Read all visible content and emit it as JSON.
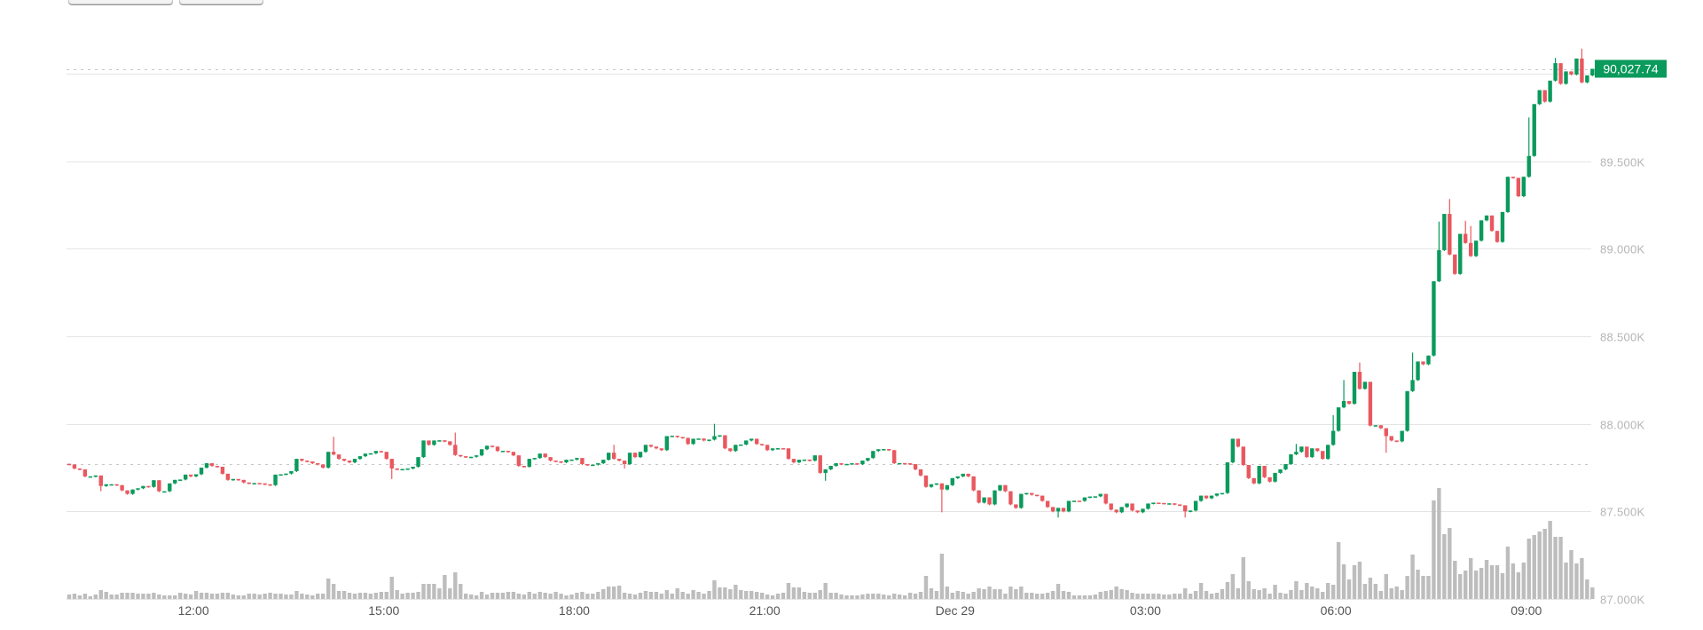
{
  "toolbar": {
    "buttons": [
      {
        "id": "btn-1"
      },
      {
        "id": "btn-2"
      }
    ]
  },
  "chart_data": {
    "type": "candlestick",
    "start": "Dec 28 10:00",
    "interval_minutes": 5,
    "ylim": [
      87000,
      90000
    ],
    "grid": true,
    "colors": {
      "up": "#0a9a5c",
      "down": "#e9585f",
      "volume": "#bdbdbd",
      "grid": "#e4e4e4",
      "price_tag": "#0a9a5c"
    },
    "y_ticks": [
      {
        "value": 87000,
        "label": "87.000K"
      },
      {
        "value": 87500,
        "label": "87.500K"
      },
      {
        "value": 88000,
        "label": "88.000K"
      },
      {
        "value": 88500,
        "label": "88.500K"
      },
      {
        "value": 89000,
        "label": "89.000K"
      },
      {
        "value": 89500,
        "label": "89.500K"
      },
      {
        "value": 90000,
        "label": ""
      }
    ],
    "x_ticks": [
      {
        "time": "Dec 28 12:00",
        "label": "12:00"
      },
      {
        "time": "Dec 28 15:00",
        "label": "15:00"
      },
      {
        "time": "Dec 28 18:00",
        "label": "18:00"
      },
      {
        "time": "Dec 28 21:00",
        "label": "21:00"
      },
      {
        "time": "Dec 29 00:00",
        "label": "Dec 29"
      },
      {
        "time": "Dec 29 03:00",
        "label": "03:00"
      },
      {
        "time": "Dec 29 06:00",
        "label": "06:00"
      },
      {
        "time": "Dec 29 09:00",
        "label": "09:00"
      }
    ],
    "last_price": 90027.74,
    "last_price_label": "90,027.74",
    "reference_price": 87768,
    "first_open": 87772,
    "closes": [
      87768,
      87745,
      87740,
      87700,
      87700,
      87705,
      87645,
      87655,
      87655,
      87650,
      87620,
      87600,
      87625,
      87632,
      87645,
      87640,
      87678,
      87615,
      87615,
      87660,
      87680,
      87682,
      87710,
      87700,
      87712,
      87750,
      87775,
      87760,
      87755,
      87715,
      87680,
      87685,
      87680,
      87665,
      87660,
      87662,
      87660,
      87655,
      87650,
      87710,
      87712,
      87716,
      87730,
      87800,
      87790,
      87785,
      87775,
      87768,
      87750,
      87840,
      87825,
      87800,
      87790,
      87780,
      87800,
      87815,
      87830,
      87832,
      87845,
      87840,
      87800,
      87745,
      87740,
      87742,
      87745,
      87755,
      87810,
      87905,
      87880,
      87905,
      87906,
      87900,
      87880,
      87822,
      87815,
      87810,
      87812,
      87820,
      87855,
      87875,
      87870,
      87845,
      87846,
      87840,
      87820,
      87760,
      87755,
      87800,
      87805,
      87830,
      87810,
      87790,
      87786,
      87780,
      87795,
      87796,
      87805,
      87770,
      87765,
      87767,
      87775,
      87795,
      87835,
      87800,
      87790,
      87770,
      87835,
      87810,
      87840,
      87880,
      87870,
      87860,
      87850,
      87930,
      87932,
      87925,
      87920,
      87885,
      87915,
      87916,
      87905,
      87910,
      87930,
      87935,
      87860,
      87845,
      87880,
      87882,
      87905,
      87915,
      87885,
      87880,
      87850,
      87860,
      87861,
      87860,
      87800,
      87780,
      87795,
      87796,
      87790,
      87820,
      87720,
      87740,
      87760,
      87775,
      87770,
      87771,
      87775,
      87770,
      87790,
      87805,
      87845,
      87855,
      87856,
      87850,
      87775,
      87776,
      87775,
      87770,
      87740,
      87705,
      87640,
      87655,
      87660,
      87625,
      87650,
      87690,
      87700,
      87715,
      87700,
      87620,
      87550,
      87580,
      87540,
      87620,
      87650,
      87615,
      87540,
      87520,
      87600,
      87605,
      87595,
      87590,
      87560,
      87525,
      87500,
      87520,
      87500,
      87560,
      87561,
      87560,
      87580,
      87585,
      87586,
      87600,
      87545,
      87510,
      87495,
      87525,
      87545,
      87505,
      87495,
      87515,
      87545,
      87550,
      87548,
      87545,
      87546,
      87540,
      87535,
      87500,
      87505,
      87560,
      87590,
      87575,
      87590,
      87602,
      87605,
      87780,
      87915,
      87870,
      87765,
      87690,
      87660,
      87760,
      87695,
      87670,
      87720,
      87740,
      87770,
      87826,
      87840,
      87870,
      87810,
      87860,
      87845,
      87800,
      87880,
      87960,
      88094,
      88130,
      88115,
      88297,
      88200,
      88240,
      87990,
      87992,
      87975,
      87930,
      87905,
      87900,
      87960,
      88187,
      88250,
      88356,
      88340,
      88390,
      88814,
      88992,
      89199,
      88967,
      88856,
      89085,
      89033,
      88958,
      89046,
      89162,
      89190,
      89102,
      89039,
      89210,
      89411,
      89405,
      89300,
      89411,
      89530,
      89826,
      89906,
      89840,
      89960,
      90060,
      89942,
      90013,
      89995,
      90086,
      89950,
      89990,
      90027.74
    ],
    "wicks": [
      [
        6,
        null,
        87620
      ],
      [
        50,
        87926,
        null
      ],
      [
        61,
        null,
        87690
      ],
      [
        73,
        87950,
        null
      ],
      [
        103,
        87880,
        null
      ],
      [
        105,
        null,
        87750
      ],
      [
        122,
        88000,
        null
      ],
      [
        143,
        null,
        87680
      ],
      [
        165,
        null,
        87500
      ],
      [
        187,
        null,
        87470
      ],
      [
        211,
        null,
        87470
      ],
      [
        232,
        87885,
        null
      ],
      [
        239,
        88050,
        null
      ],
      [
        241,
        88250,
        null
      ],
      [
        244,
        88350,
        null
      ],
      [
        249,
        null,
        87840
      ],
      [
        254,
        88407,
        null
      ],
      [
        259,
        89155,
        null
      ],
      [
        261,
        89284,
        null
      ],
      [
        264,
        89160,
        null
      ],
      [
        265,
        89130,
        null
      ],
      [
        276,
        89750,
        null
      ],
      [
        281,
        90090,
        null
      ],
      [
        286,
        90143,
        null
      ]
    ],
    "volumes": [
      5,
      6,
      4,
      6,
      3,
      5,
      10,
      8,
      5,
      5,
      7,
      7,
      7,
      6,
      6,
      6,
      7,
      5,
      4,
      4,
      4,
      7,
      6,
      5,
      9,
      7,
      7,
      6,
      6,
      7,
      7,
      5,
      4,
      4,
      6,
      6,
      5,
      6,
      7,
      6,
      6,
      5,
      5,
      9,
      6,
      5,
      4,
      6,
      6,
      23,
      17,
      9,
      9,
      7,
      6,
      7,
      7,
      6,
      7,
      8,
      8,
      25,
      10,
      6,
      7,
      7,
      8,
      17,
      17,
      17,
      12,
      27,
      12,
      30,
      17,
      6,
      5,
      4,
      8,
      5,
      7,
      7,
      7,
      8,
      8,
      6,
      5,
      8,
      6,
      8,
      7,
      6,
      8,
      6,
      4,
      5,
      7,
      8,
      6,
      6,
      8,
      11,
      14,
      14,
      15,
      7,
      6,
      5,
      7,
      9,
      8,
      8,
      6,
      10,
      6,
      12,
      8,
      6,
      10,
      8,
      6,
      9,
      21,
      13,
      13,
      11,
      16,
      10,
      9,
      9,
      8,
      7,
      5,
      4,
      6,
      7,
      18,
      13,
      13,
      8,
      7,
      7,
      10,
      18,
      7,
      7,
      5,
      4,
      4,
      4,
      5,
      6,
      6,
      6,
      5,
      4,
      6,
      5,
      4,
      7,
      6,
      8,
      26,
      12,
      9,
      51,
      14,
      7,
      9,
      8,
      6,
      8,
      12,
      11,
      14,
      11,
      11,
      6,
      14,
      11,
      14,
      7,
      7,
      6,
      6,
      7,
      9,
      17,
      9,
      8,
      4,
      4,
      4,
      4,
      5,
      8,
      9,
      10,
      14,
      11,
      10,
      7,
      6,
      6,
      6,
      6,
      6,
      5,
      5,
      6,
      6,
      12,
      6,
      9,
      18,
      9,
      6,
      7,
      11,
      19,
      28,
      12,
      47,
      20,
      11,
      10,
      12,
      6,
      16,
      7,
      6,
      10,
      20,
      10,
      18,
      14,
      12,
      8,
      18,
      16,
      64,
      39,
      22,
      38,
      42,
      17,
      24,
      17,
      9,
      28,
      12,
      14,
      10,
      26,
      50,
      33,
      26,
      26,
      111,
      125,
      73,
      80,
      43,
      28,
      32,
      46,
      32,
      35,
      44,
      38,
      38,
      29,
      59,
      40,
      30,
      41,
      68,
      72,
      76,
      79,
      88,
      70,
      70,
      41,
      55,
      40,
      46,
      22,
      13
    ]
  }
}
